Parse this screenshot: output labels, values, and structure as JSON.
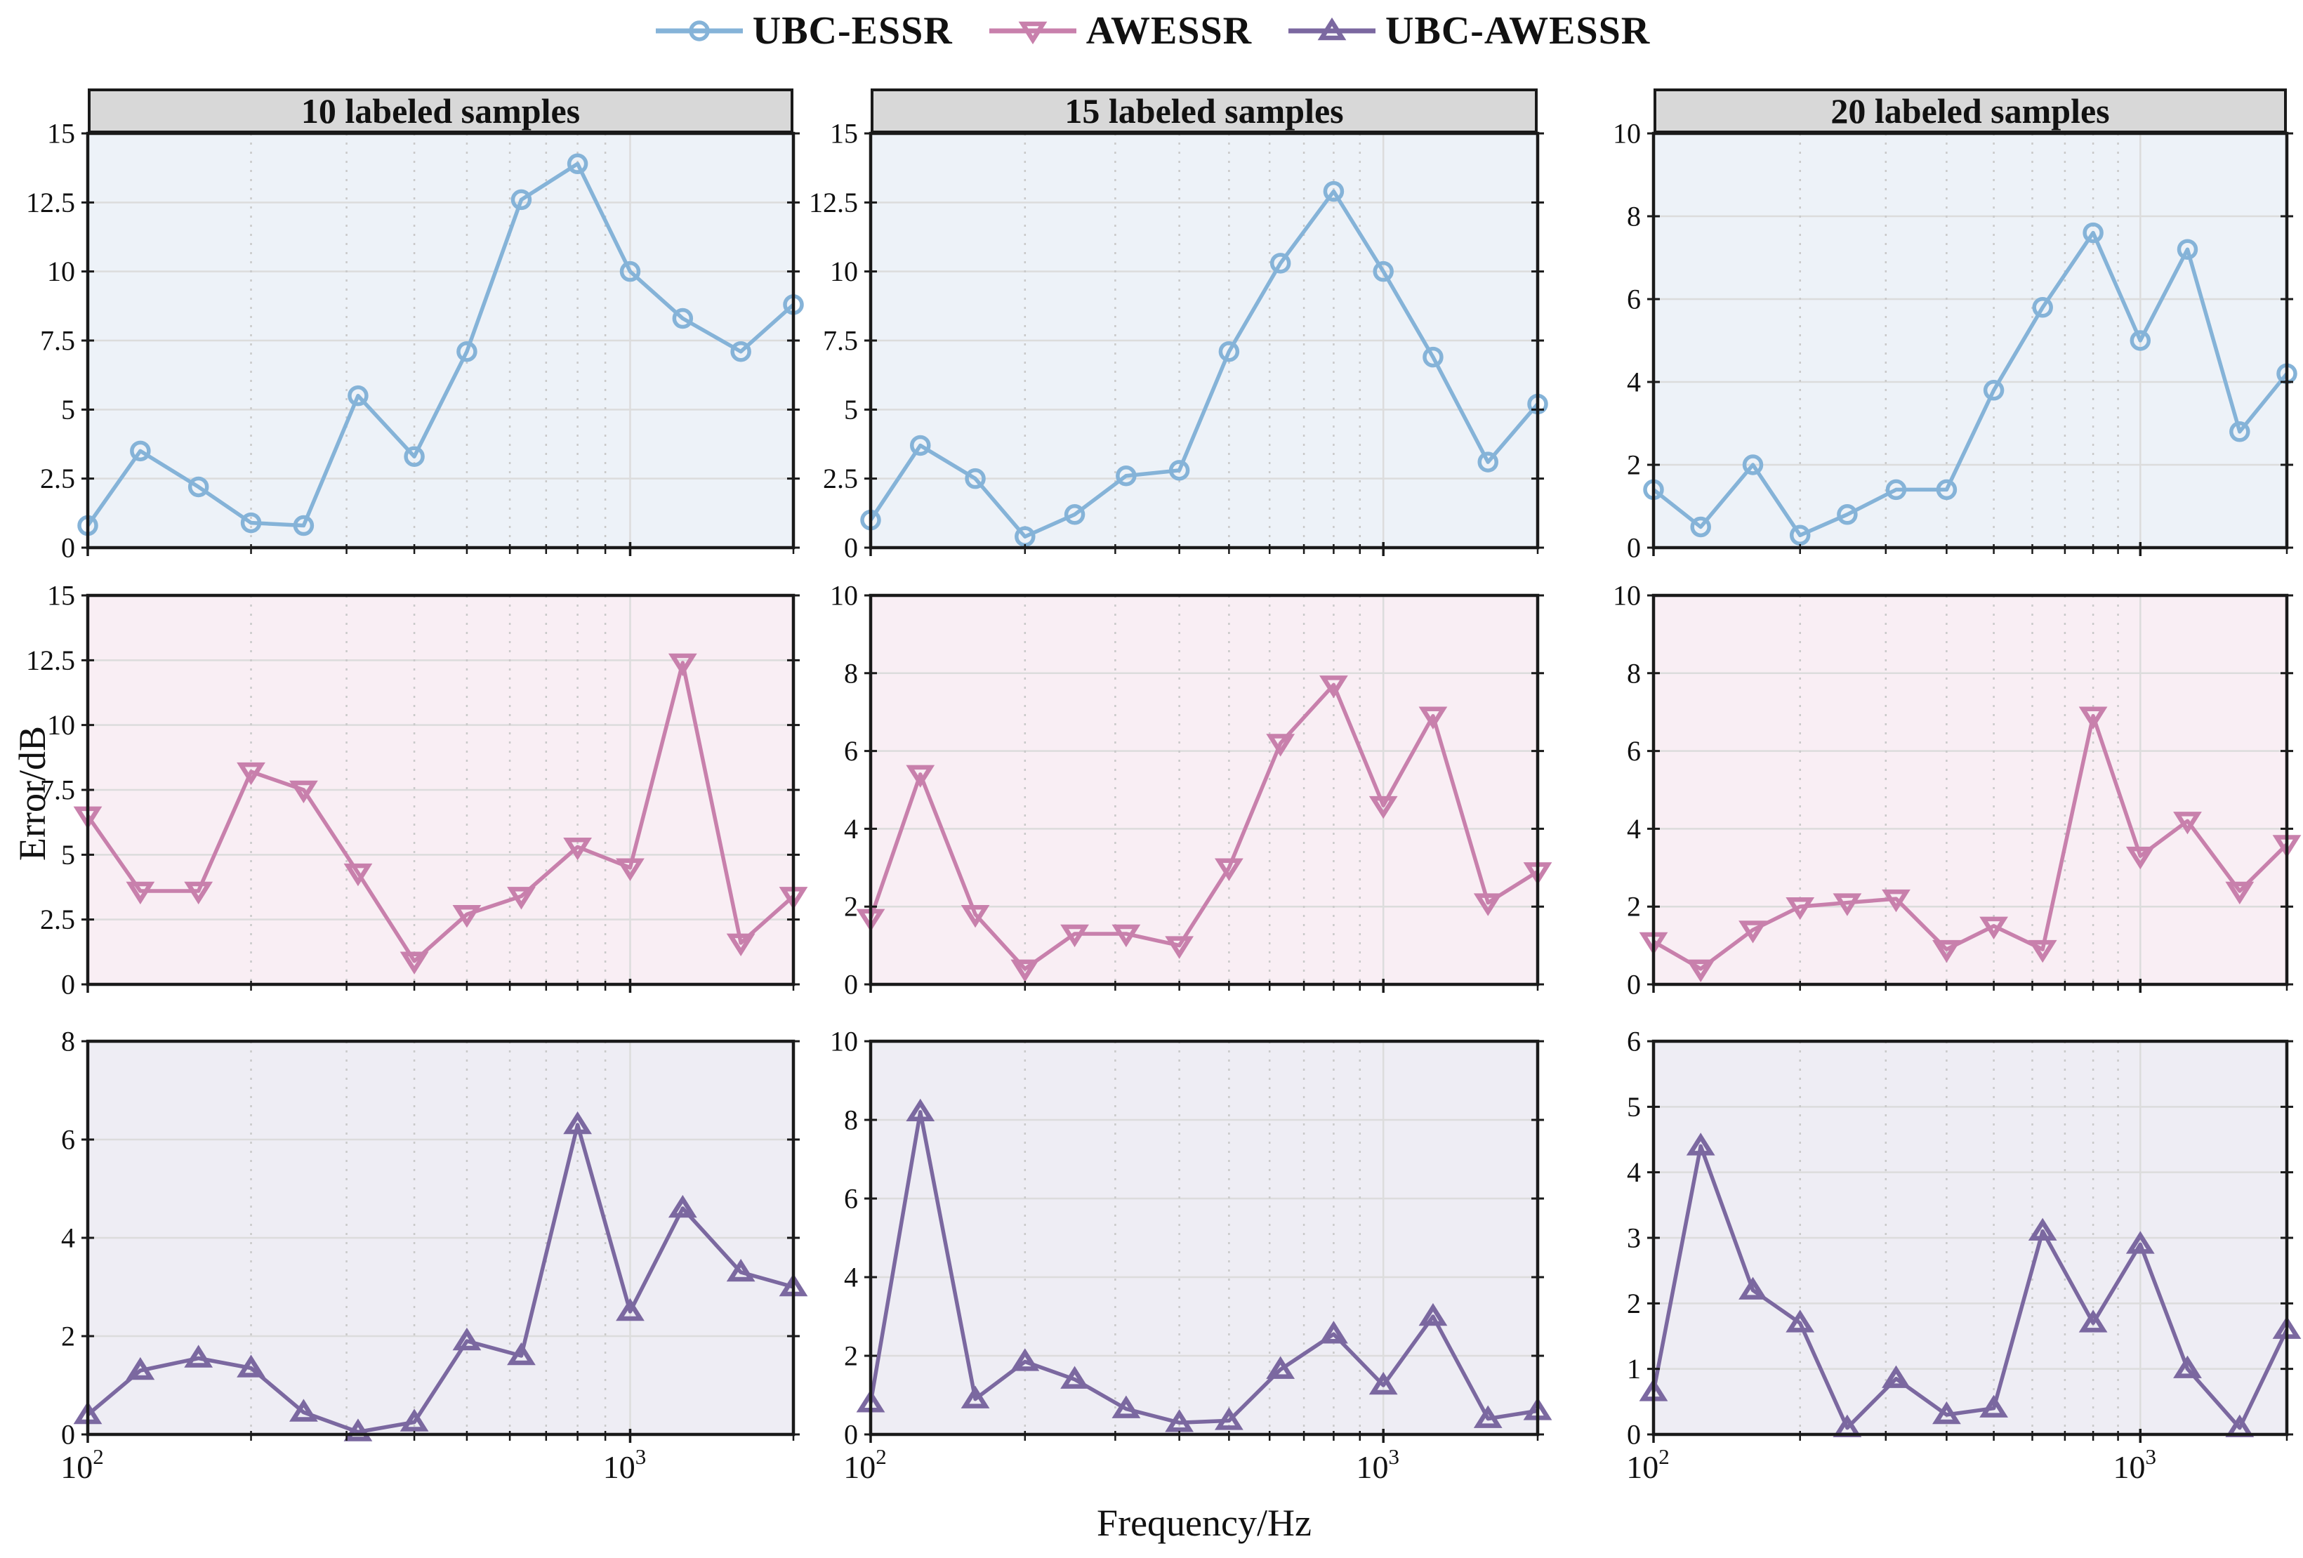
{
  "figure": {
    "column_headers": [
      "10 labeled samples",
      "15 labeled samples",
      "20 labeled samples"
    ],
    "ylabel": "Error/dB",
    "xlabel": "Frequency/Hz",
    "legend": {
      "position": "top-center",
      "items": [
        {
          "label": "UBC-ESSR",
          "marker": "circle",
          "color": "#85b3d8"
        },
        {
          "label": "AWESSR",
          "marker": "triangle-down",
          "color": "#c880ac"
        },
        {
          "label": "UBC-AWESSR",
          "marker": "triangle-up",
          "color": "#7b68a0"
        }
      ]
    },
    "x_tick_labels": [
      {
        "value": 100,
        "base": "10",
        "exp": "2"
      },
      {
        "value": 1000,
        "base": "10",
        "exp": "3"
      }
    ],
    "colors": {
      "frame": "#1a1a1a",
      "header_bg": "#d8d8d8",
      "grid_major": "#dcdcdc",
      "grid_minor": "#c9c9c9"
    }
  },
  "chart_data": [
    {
      "id": "ubc-essr-10",
      "type": "line",
      "row": 0,
      "col": 0,
      "series": "UBC-ESSR",
      "marker": "circle",
      "color": "#85b3d8",
      "bg": "#edf2f8",
      "x_scale": "log",
      "xlim": [
        100,
        2000
      ],
      "ylim": [
        0,
        15
      ],
      "yticks": [
        0,
        2.5,
        5,
        7.5,
        10,
        12.5,
        15
      ],
      "x_minor_grid": [
        200,
        300,
        400,
        500,
        600,
        700,
        800,
        900
      ],
      "x_major_grid": [
        1000
      ],
      "x": [
        100,
        125,
        160,
        200,
        250,
        315,
        400,
        500,
        630,
        800,
        1000,
        1250,
        1600,
        2000
      ],
      "values": [
        0.8,
        3.5,
        2.2,
        0.9,
        0.8,
        5.5,
        3.3,
        7.1,
        12.6,
        13.9,
        10.0,
        8.3,
        7.1,
        8.8
      ]
    },
    {
      "id": "ubc-essr-15",
      "type": "line",
      "row": 0,
      "col": 1,
      "series": "UBC-ESSR",
      "marker": "circle",
      "color": "#85b3d8",
      "bg": "#edf2f8",
      "x_scale": "log",
      "xlim": [
        100,
        2000
      ],
      "ylim": [
        0,
        15
      ],
      "yticks": [
        0,
        2.5,
        5,
        7.5,
        10,
        12.5,
        15
      ],
      "x_minor_grid": [
        200,
        300,
        400,
        500,
        600,
        700,
        800,
        900
      ],
      "x_major_grid": [
        1000
      ],
      "x": [
        100,
        125,
        160,
        200,
        250,
        315,
        400,
        500,
        630,
        800,
        1000,
        1250,
        1600,
        2000
      ],
      "values": [
        1.0,
        3.7,
        2.5,
        0.4,
        1.2,
        2.6,
        2.8,
        7.1,
        10.3,
        12.9,
        10.0,
        6.9,
        3.1,
        5.2
      ]
    },
    {
      "id": "ubc-essr-20",
      "type": "line",
      "row": 0,
      "col": 2,
      "series": "UBC-ESSR",
      "marker": "circle",
      "color": "#85b3d8",
      "bg": "#edf2f8",
      "x_scale": "log",
      "xlim": [
        100,
        2000
      ],
      "ylim": [
        0,
        10
      ],
      "yticks": [
        0,
        2,
        4,
        6,
        8,
        10
      ],
      "x_minor_grid": [
        200,
        300,
        400,
        500,
        600,
        700,
        800,
        900
      ],
      "x_major_grid": [
        1000
      ],
      "x": [
        100,
        125,
        160,
        200,
        250,
        315,
        400,
        500,
        630,
        800,
        1000,
        1250,
        1600,
        2000
      ],
      "values": [
        1.4,
        0.5,
        2.0,
        0.3,
        0.8,
        1.4,
        1.4,
        3.8,
        5.8,
        7.6,
        5.0,
        7.2,
        2.8,
        4.2
      ]
    },
    {
      "id": "awessr-10",
      "type": "line",
      "row": 1,
      "col": 0,
      "series": "AWESSR",
      "marker": "triangle-down",
      "color": "#c880ac",
      "bg": "#f9eef4",
      "x_scale": "log",
      "xlim": [
        100,
        2000
      ],
      "ylim": [
        0,
        15
      ],
      "yticks": [
        0,
        2.5,
        5,
        7.5,
        10,
        12.5,
        15
      ],
      "x_minor_grid": [
        200,
        300,
        400,
        500,
        600,
        700,
        800,
        900
      ],
      "x_major_grid": [
        1000
      ],
      "x": [
        100,
        125,
        160,
        200,
        250,
        315,
        400,
        500,
        630,
        800,
        1000,
        1250,
        1600,
        2000
      ],
      "values": [
        6.5,
        3.6,
        3.6,
        8.2,
        7.5,
        4.3,
        0.9,
        2.7,
        3.4,
        5.3,
        4.5,
        12.4,
        1.6,
        3.4
      ]
    },
    {
      "id": "awessr-15",
      "type": "line",
      "row": 1,
      "col": 1,
      "series": "AWESSR",
      "marker": "triangle-down",
      "color": "#c880ac",
      "bg": "#f9eef4",
      "x_scale": "log",
      "xlim": [
        100,
        2000
      ],
      "ylim": [
        0,
        10
      ],
      "yticks": [
        0,
        2,
        4,
        6,
        8,
        10
      ],
      "x_minor_grid": [
        200,
        300,
        400,
        500,
        600,
        700,
        800,
        900
      ],
      "x_major_grid": [
        1000
      ],
      "x": [
        100,
        125,
        160,
        200,
        250,
        315,
        400,
        500,
        630,
        800,
        1000,
        1250,
        1600,
        2000
      ],
      "values": [
        1.7,
        5.4,
        1.8,
        0.4,
        1.3,
        1.3,
        1.0,
        3.0,
        6.2,
        7.7,
        4.6,
        6.9,
        2.1,
        2.9
      ]
    },
    {
      "id": "awessr-20",
      "type": "line",
      "row": 1,
      "col": 2,
      "series": "AWESSR",
      "marker": "triangle-down",
      "color": "#c880ac",
      "bg": "#f9eef4",
      "x_scale": "log",
      "xlim": [
        100,
        2000
      ],
      "ylim": [
        0,
        10
      ],
      "yticks": [
        0,
        2,
        4,
        6,
        8,
        10
      ],
      "x_minor_grid": [
        200,
        300,
        400,
        500,
        600,
        700,
        800,
        900
      ],
      "x_major_grid": [
        1000
      ],
      "x": [
        100,
        125,
        160,
        200,
        250,
        315,
        400,
        500,
        630,
        800,
        1000,
        1250,
        1600,
        2000
      ],
      "values": [
        1.1,
        0.4,
        1.4,
        2.0,
        2.1,
        2.2,
        0.9,
        1.5,
        0.9,
        6.9,
        3.3,
        4.2,
        2.4,
        3.6
      ]
    },
    {
      "id": "ubc-awessr-10",
      "type": "line",
      "row": 2,
      "col": 0,
      "series": "UBC-AWESSR",
      "marker": "triangle-up",
      "color": "#7b68a0",
      "bg": "#eeedf4",
      "x_scale": "log",
      "xlim": [
        100,
        2000
      ],
      "ylim": [
        0,
        8
      ],
      "yticks": [
        0,
        2,
        4,
        6,
        8
      ],
      "x_minor_grid": [
        200,
        300,
        400,
        500,
        600,
        700,
        800,
        900
      ],
      "x_major_grid": [
        1000
      ],
      "x": [
        100,
        125,
        160,
        200,
        250,
        315,
        400,
        500,
        630,
        800,
        1000,
        1250,
        1600,
        2000
      ],
      "values": [
        0.4,
        1.3,
        1.55,
        1.35,
        0.45,
        0.05,
        0.25,
        1.9,
        1.6,
        6.3,
        2.5,
        4.6,
        3.3,
        3.0
      ]
    },
    {
      "id": "ubc-awessr-15",
      "type": "line",
      "row": 2,
      "col": 1,
      "series": "UBC-AWESSR",
      "marker": "triangle-up",
      "color": "#7b68a0",
      "bg": "#eeedf4",
      "x_scale": "log",
      "xlim": [
        100,
        2000
      ],
      "ylim": [
        0,
        10
      ],
      "yticks": [
        0,
        2,
        4,
        6,
        8,
        10
      ],
      "x_minor_grid": [
        200,
        300,
        400,
        500,
        600,
        700,
        800,
        900
      ],
      "x_major_grid": [
        1000
      ],
      "x": [
        100,
        125,
        160,
        200,
        250,
        315,
        400,
        500,
        630,
        800,
        1000,
        1250,
        1600,
        2000
      ],
      "values": [
        0.8,
        8.2,
        0.9,
        1.85,
        1.4,
        0.65,
        0.3,
        0.35,
        1.65,
        2.55,
        1.25,
        3.0,
        0.4,
        0.6
      ]
    },
    {
      "id": "ubc-awessr-20",
      "type": "line",
      "row": 2,
      "col": 2,
      "series": "UBC-AWESSR",
      "marker": "triangle-up",
      "color": "#7b68a0",
      "bg": "#eeedf4",
      "x_scale": "log",
      "xlim": [
        100,
        2000
      ],
      "ylim": [
        0,
        6
      ],
      "yticks": [
        0,
        1,
        2,
        3,
        4,
        5,
        6
      ],
      "x_minor_grid": [
        200,
        300,
        400,
        500,
        600,
        700,
        800,
        900
      ],
      "x_major_grid": [
        1000
      ],
      "x": [
        100,
        125,
        160,
        200,
        250,
        315,
        400,
        500,
        630,
        800,
        1000,
        1250,
        1600,
        2000
      ],
      "values": [
        0.65,
        4.4,
        2.2,
        1.7,
        0.1,
        0.85,
        0.3,
        0.4,
        3.1,
        1.7,
        2.9,
        1.0,
        0.1,
        1.6
      ]
    }
  ]
}
